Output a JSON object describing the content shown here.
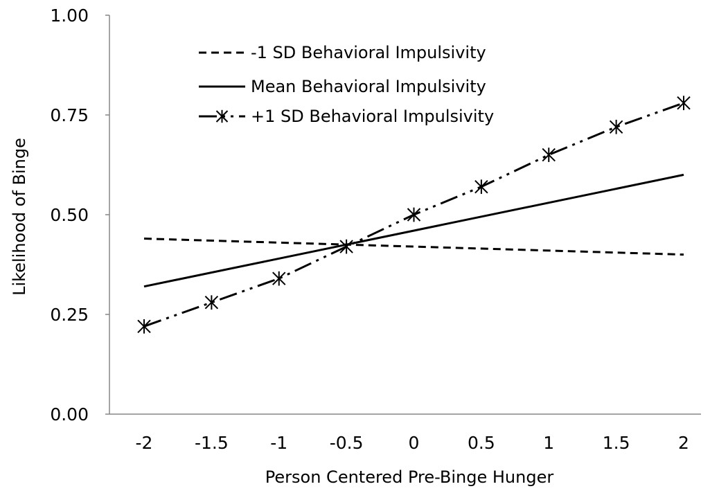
{
  "chart_data": {
    "type": "line",
    "xlabel": "Person Centered Pre-Binge Hunger",
    "ylabel": "Likelihood of Binge",
    "ylim": [
      0,
      1
    ],
    "grid": false,
    "legend_position": "top-left",
    "x": [
      -2,
      -1.5,
      -1,
      -0.5,
      0,
      0.5,
      1,
      1.5,
      2
    ],
    "x_tick_labels": [
      "-2",
      "-1.5",
      "-1",
      "-0.5",
      "0",
      "0.5",
      "1",
      "1.5",
      "2"
    ],
    "y_ticks": [
      0,
      0.25,
      0.5,
      0.75,
      1
    ],
    "y_tick_labels": [
      "0.00",
      "0.25",
      "0.50",
      "0.75",
      "1.00"
    ],
    "series": [
      {
        "name": "-1 SD Behavioral Impulsivity",
        "style": "dashed",
        "x": [
          -2,
          2
        ],
        "values": [
          0.44,
          0.4
        ]
      },
      {
        "name": "Mean Behavioral Impulsivity",
        "style": "solid",
        "x": [
          -2,
          2
        ],
        "values": [
          0.32,
          0.6
        ]
      },
      {
        "name": "+1 SD Behavioral Impulsivity",
        "style": "dash-dot-dot",
        "marker": "asterisk",
        "x": [
          -2,
          -1.5,
          -1,
          -0.5,
          0,
          0.5,
          1,
          1.5,
          2
        ],
        "values": [
          0.22,
          0.28,
          0.34,
          0.42,
          0.5,
          0.57,
          0.65,
          0.72,
          0.78
        ]
      }
    ]
  }
}
